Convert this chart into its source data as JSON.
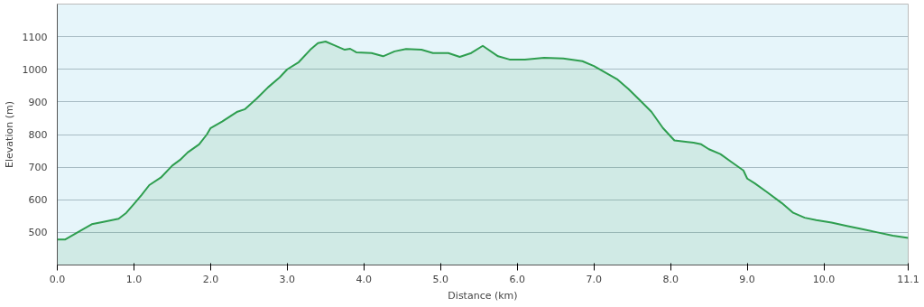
{
  "chart_data": {
    "type": "area",
    "xlabel": "Distance (km)",
    "ylabel": "Elevation (m)",
    "xlim": [
      0,
      11.1
    ],
    "ylim": [
      400,
      1200
    ],
    "xticks": [
      {
        "value": 0,
        "label": "0.0"
      },
      {
        "value": 1,
        "label": "1.0"
      },
      {
        "value": 2,
        "label": "2.0"
      },
      {
        "value": 3,
        "label": "3.0"
      },
      {
        "value": 4,
        "label": "4.0"
      },
      {
        "value": 5,
        "label": "5.0"
      },
      {
        "value": 6,
        "label": "6.0"
      },
      {
        "value": 7,
        "label": "7.0"
      },
      {
        "value": 8,
        "label": "8.0"
      },
      {
        "value": 9,
        "label": "9.0"
      },
      {
        "value": 10,
        "label": "10.0"
      },
      {
        "value": 11.1,
        "label": "11.1"
      }
    ],
    "yticks": [
      500,
      600,
      700,
      800,
      900,
      1000,
      1100
    ],
    "grid": "y",
    "series": [
      {
        "color": "#2e9e4f",
        "x": [
          0,
          0.1,
          0.3,
          0.45,
          0.6,
          0.8,
          0.9,
          1.0,
          1.1,
          1.2,
          1.35,
          1.5,
          1.6,
          1.7,
          1.85,
          1.95,
          2.0,
          2.15,
          2.35,
          2.45,
          2.6,
          2.75,
          2.9,
          3.0,
          3.15,
          3.3,
          3.4,
          3.5,
          3.6,
          3.75,
          3.82,
          3.9,
          4.1,
          4.25,
          4.4,
          4.55,
          4.75,
          4.9,
          5.1,
          5.25,
          5.4,
          5.55,
          5.75,
          5.9,
          6.1,
          6.35,
          6.6,
          6.85,
          7.0,
          7.15,
          7.3,
          7.45,
          7.6,
          7.75,
          7.9,
          8.05,
          8.3,
          8.4,
          8.5,
          8.65,
          8.8,
          8.95,
          9.0,
          9.1,
          9.25,
          9.45,
          9.6,
          9.75,
          9.9,
          10.1,
          10.3,
          10.5,
          10.7,
          10.9,
          11.1
        ],
        "values": [
          478,
          478,
          505,
          525,
          532,
          542,
          560,
          587,
          615,
          645,
          668,
          705,
          722,
          745,
          770,
          800,
          820,
          840,
          870,
          878,
          910,
          945,
          975,
          1000,
          1022,
          1060,
          1080,
          1085,
          1075,
          1060,
          1063,
          1052,
          1050,
          1040,
          1055,
          1062,
          1060,
          1050,
          1050,
          1038,
          1050,
          1072,
          1040,
          1030,
          1030,
          1035,
          1033,
          1025,
          1010,
          990,
          970,
          940,
          905,
          870,
          820,
          782,
          775,
          770,
          755,
          740,
          715,
          690,
          665,
          650,
          625,
          590,
          560,
          545,
          538,
          530,
          520,
          510,
          500,
          490,
          483
        ]
      }
    ]
  }
}
